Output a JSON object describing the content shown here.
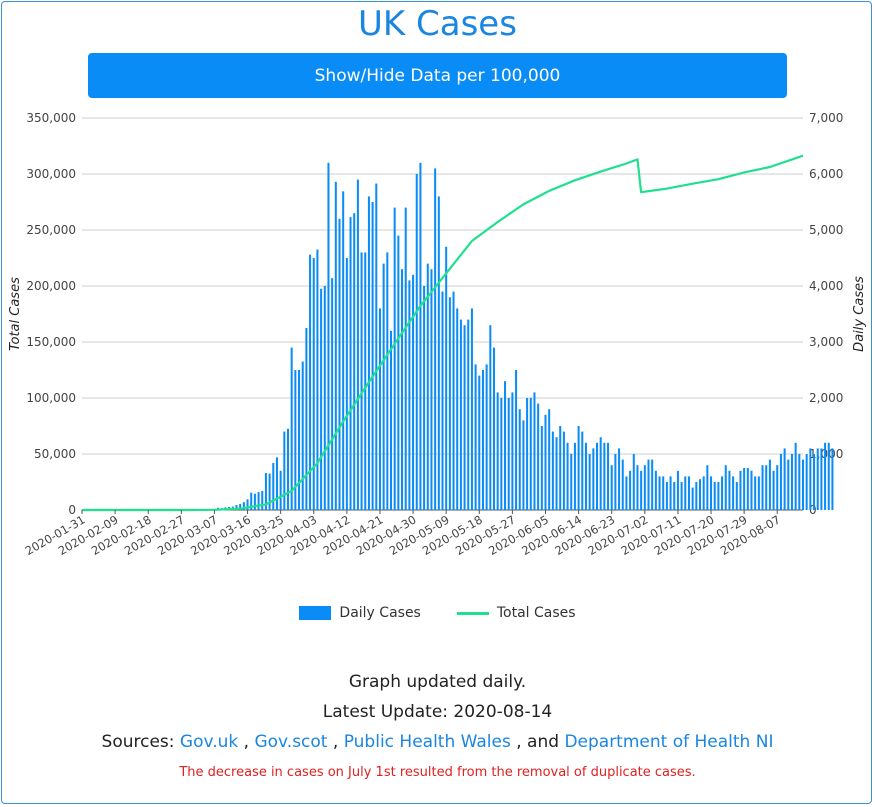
{
  "title": "UK Cases",
  "toggle_label": "Show/Hide Data per 100,000",
  "legend": {
    "daily": "Daily Cases",
    "total": "Total Cases"
  },
  "info": {
    "updated": "Graph updated daily.",
    "latest": "Latest Update: 2020-08-14",
    "sources_prefix": "Sources:",
    "sep1": ",",
    "sep2": ",",
    "sep3": ", and",
    "source_govuk": "Gov.uk",
    "source_govscot": "Gov.scot",
    "source_phw": "Public Health Wales",
    "source_doh": "Department of Health NI"
  },
  "note": "The decrease in cases on July 1st resulted from the removal of duplicate cases.",
  "colors": {
    "bar": "#0a8cf7",
    "line": "#1fe08f",
    "accent": "#1a86e0",
    "note": "#e02020"
  },
  "chart_data": {
    "type": "bar",
    "x_label_left": "Total Cases",
    "y_label_right": "Daily Cases",
    "left_axis": {
      "min": 0,
      "max": 350000,
      "ticks": [
        "0",
        "50,000",
        "100,000",
        "150,000",
        "200,000",
        "250,000",
        "300,000",
        "350,000"
      ]
    },
    "right_axis": {
      "min": 0,
      "max": 7000,
      "ticks": [
        "0",
        "1,000",
        "2,000",
        "3,000",
        "4,000",
        "5,000",
        "6,000",
        "7,000"
      ]
    },
    "x_ticks": [
      "2020-01-31",
      "2020-02-09",
      "2020-02-18",
      "2020-02-27",
      "2020-03-07",
      "2020-03-16",
      "2020-03-25",
      "2020-04-03",
      "2020-04-12",
      "2020-04-21",
      "2020-04-30",
      "2020-05-09",
      "2020-05-18",
      "2020-05-27",
      "2020-06-05",
      "2020-06-14",
      "2020-06-23",
      "2020-07-02",
      "2020-07-11",
      "2020-07-20",
      "2020-07-29",
      "2020-08-07"
    ],
    "start_date": "2020-01-31",
    "end_date": "2020-08-14",
    "series": [
      {
        "name": "Daily Cases",
        "axis": "right",
        "values": [
          2,
          0,
          0,
          0,
          0,
          0,
          0,
          0,
          1,
          1,
          1,
          0,
          0,
          1,
          0,
          0,
          0,
          0,
          0,
          0,
          0,
          0,
          0,
          0,
          0,
          0,
          0,
          0,
          0,
          1,
          3,
          2,
          5,
          2,
          12,
          12,
          12,
          40,
          33,
          48,
          54,
          60,
          88,
          108,
          140,
          191,
          310,
          290,
          320,
          340,
          660,
          650,
          840,
          940,
          700,
          1400,
          1450,
          2900,
          2500,
          2500,
          2650,
          3250,
          4560,
          4500,
          4650,
          3950,
          4000,
          6200,
          4140,
          5860,
          5200,
          5690,
          4500,
          5230,
          5300,
          5900,
          4600,
          4600,
          5600,
          5500,
          5830,
          3600,
          4400,
          4600,
          3200,
          5400,
          4900,
          4300,
          5400,
          4100,
          4200,
          6000,
          6200,
          4000,
          4400,
          4300,
          6100,
          5600,
          3900,
          4700,
          3800,
          3900,
          3600,
          3400,
          3300,
          3400,
          3600,
          2600,
          2400,
          2500,
          2600,
          3300,
          2900,
          2100,
          2000,
          2300,
          2000,
          2100,
          2500,
          1800,
          1600,
          2000,
          2000,
          2100,
          1900,
          1500,
          1700,
          1800,
          1400,
          1300,
          1500,
          1400,
          1200,
          1000,
          1200,
          1500,
          1400,
          1200,
          1000,
          1100,
          1200,
          1300,
          1200,
          1200,
          800,
          1000,
          1100,
          900,
          600,
          700,
          1000,
          800,
          700,
          800,
          900,
          900,
          700,
          600,
          600,
          500,
          600,
          500,
          700,
          500,
          600,
          600,
          400,
          500,
          550,
          600,
          800,
          600,
          500,
          500,
          600,
          800,
          700,
          600,
          500,
          700,
          750,
          750,
          700,
          600,
          600,
          800,
          800,
          900,
          700,
          800,
          1000,
          1100,
          900,
          1000,
          1200,
          1000,
          900,
          1000,
          1100,
          1000,
          1100,
          1100,
          1200,
          1200,
          1100
        ]
      },
      {
        "name": "Total Cases",
        "axis": "left",
        "keypoints": [
          [
            "2020-01-31",
            2
          ],
          [
            "2020-02-29",
            23
          ],
          [
            "2020-03-07",
            209
          ],
          [
            "2020-03-14",
            1140
          ],
          [
            "2020-03-21",
            5018
          ],
          [
            "2020-03-28",
            17089
          ],
          [
            "2020-04-04",
            41903
          ],
          [
            "2020-04-11",
            78991
          ],
          [
            "2020-04-18",
            114217
          ],
          [
            "2020-04-25",
            148377
          ],
          [
            "2020-05-02",
            182260
          ],
          [
            "2020-05-09",
            211364
          ],
          [
            "2020-05-16",
            240161
          ],
          [
            "2020-05-23",
            257154
          ],
          [
            "2020-05-30",
            272826
          ],
          [
            "2020-06-06",
            284868
          ],
          [
            "2020-06-13",
            294375
          ],
          [
            "2020-06-20",
            302138
          ],
          [
            "2020-06-27",
            309360
          ],
          [
            "2020-06-30",
            313000
          ],
          [
            "2020-07-01",
            283757
          ],
          [
            "2020-07-08",
            286979
          ],
          [
            "2020-07-15",
            291373
          ],
          [
            "2020-07-22",
            295372
          ],
          [
            "2020-07-29",
            301455
          ],
          [
            "2020-08-05",
            306293
          ],
          [
            "2020-08-14",
            316367
          ]
        ]
      }
    ],
    "grid": true
  }
}
